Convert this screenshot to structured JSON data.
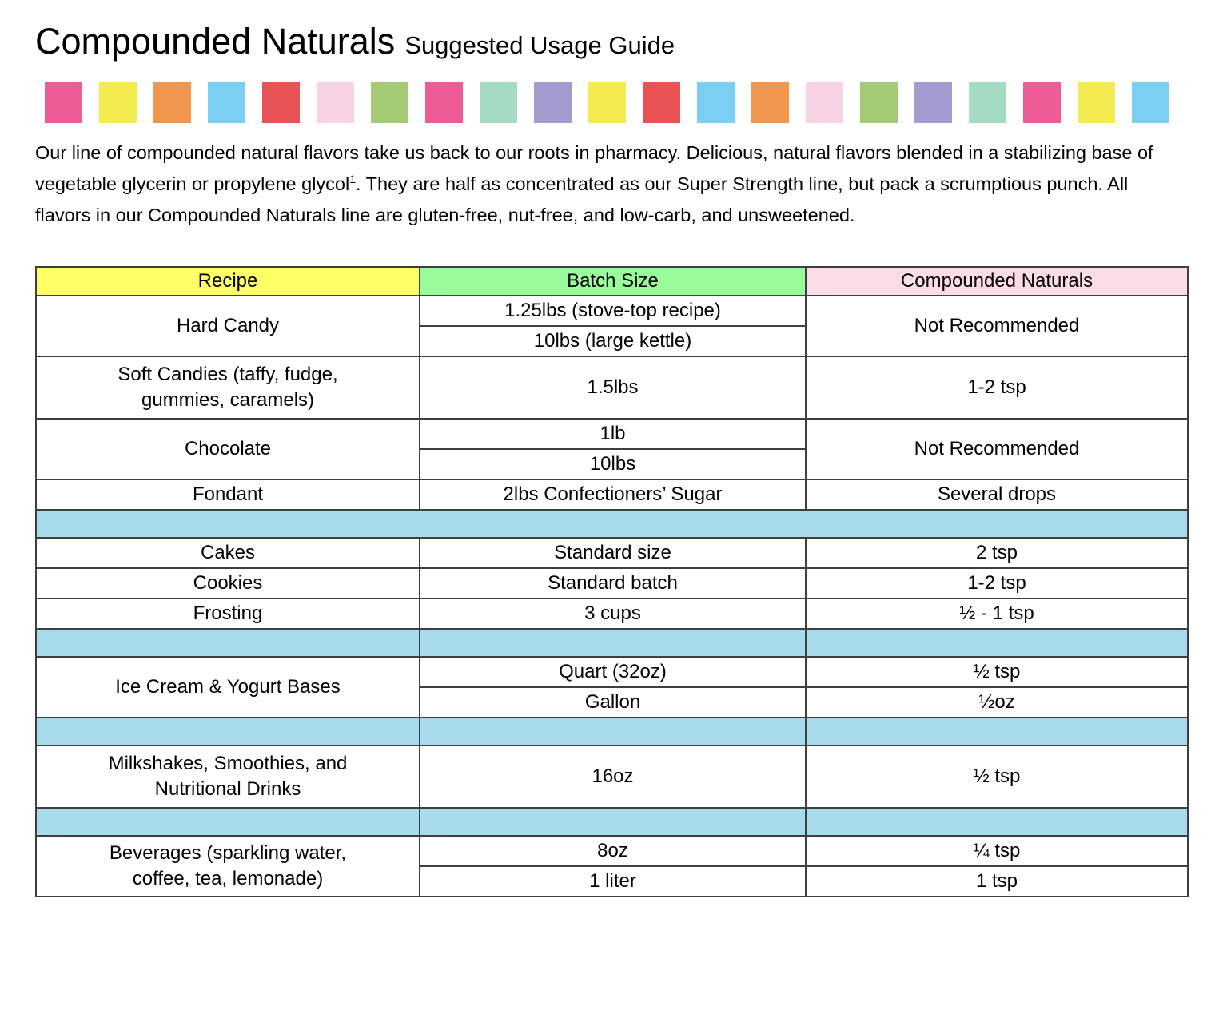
{
  "page": {
    "title": "Compounded Naturals",
    "subtitle": "Suggested Usage Guide"
  },
  "intro": {
    "before_sup": "Our line of compounded natural flavors take us back to our roots in pharmacy. Delicious, natural flavors blended in a stabilizing base of vegetable glycerin or propylene glycol",
    "sup": "1",
    "after_sup": ". They are half as concentrated as our Super Strength line, but pack a scrumptious punch. All flavors in our Compounded Naturals line are gluten-free, nut-free, and low-carb, and unsweetened."
  },
  "banner": {
    "squares": [
      "#EE5C95",
      "#F2EC51",
      "#F0964F",
      "#7BCFF2",
      "#EA5355",
      "#F6D4E6",
      "#A4CB74",
      "#EE5C95",
      "#A5DBC2",
      "#A49BD1",
      "#F2EC51",
      "#EA5355",
      "#7BCFF2",
      "#F0964F",
      "#F6D4E6",
      "#A4CB74",
      "#A49BD1",
      "#A5DBC2",
      "#EE5C95",
      "#F2EC51",
      "#7BCFF2"
    ]
  },
  "colors": {
    "header_yellow": "#FFFF66",
    "header_green": "#9AFB9A",
    "header_pink": "#FBDCE7",
    "spacer_blue": "#A8DCEC",
    "border": "#3F3F3F"
  },
  "table": {
    "headers": {
      "recipe": "Recipe",
      "batch_size": "Batch Size",
      "brand": "Compounded Naturals"
    },
    "rows": {
      "hard_candy": {
        "recipe": "Hard Candy",
        "batch1": "1.25lbs (stove-top recipe)",
        "batch2": "10lbs (large kettle)",
        "usage": "Not Recommended"
      },
      "soft_candies": {
        "recipe": "Soft Candies (taffy, fudge, gummies, caramels)",
        "batch": "1.5lbs",
        "usage": "1-2 tsp"
      },
      "chocolate": {
        "recipe": "Chocolate",
        "batch1": "1lb",
        "batch2": "10lbs",
        "usage": "Not Recommended"
      },
      "fondant": {
        "recipe": "Fondant",
        "batch": "2lbs Confectioners’ Sugar",
        "usage": "Several drops"
      },
      "cakes": {
        "recipe": "Cakes",
        "batch": "Standard size",
        "usage": "2 tsp"
      },
      "cookies": {
        "recipe": "Cookies",
        "batch": "Standard batch",
        "usage": "1-2 tsp"
      },
      "frosting": {
        "recipe": "Frosting",
        "batch": "3 cups",
        "usage": "½ - 1 tsp"
      },
      "ice_cream": {
        "recipe": "Ice Cream & Yogurt Bases",
        "batch1": "Quart (32oz)",
        "usage1": "½ tsp",
        "batch2": "Gallon",
        "usage2": "½oz"
      },
      "milkshakes": {
        "recipe": "Milkshakes, Smoothies, and Nutritional Drinks",
        "batch": "16oz",
        "usage": "½ tsp"
      },
      "beverages": {
        "recipe": "Beverages (sparkling water, coffee, tea, lemonade)",
        "batch1": "8oz",
        "usage1": "¼ tsp",
        "batch2": "1 liter",
        "usage2": "1 tsp"
      }
    }
  }
}
